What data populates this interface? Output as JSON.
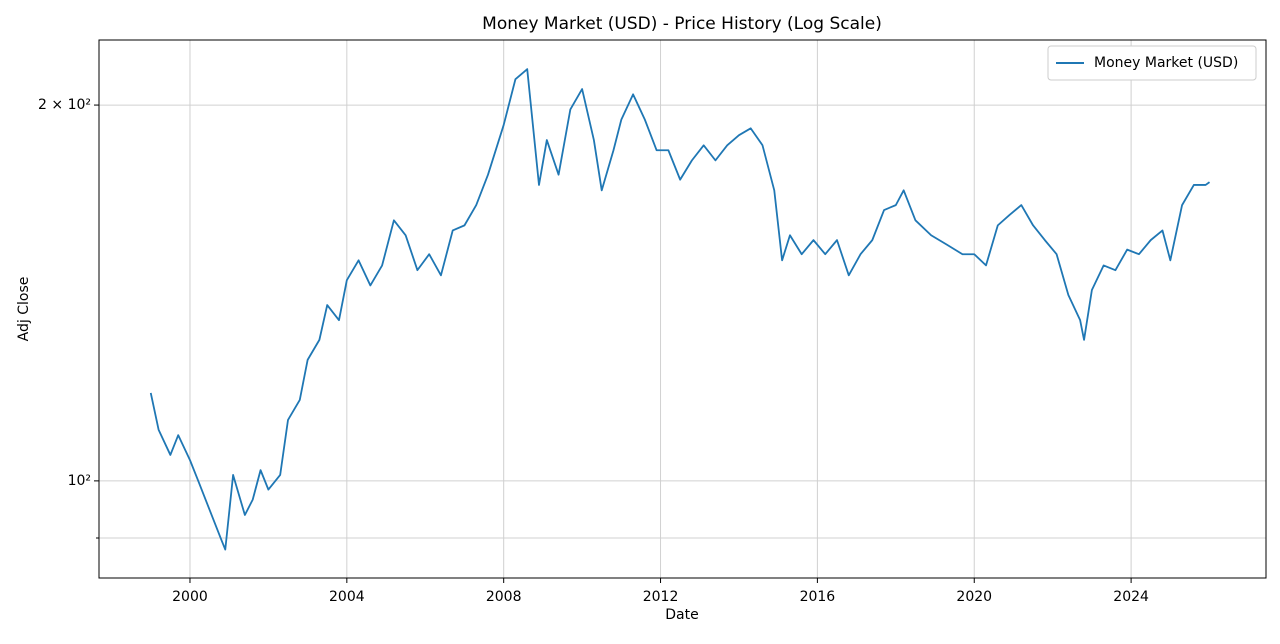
{
  "chart_data": {
    "type": "line",
    "title": "Money Market (USD) - Price History (Log Scale)",
    "xlabel": "Date",
    "ylabel": "Adj Close",
    "log_y": true,
    "grid": true,
    "legend": "upper right",
    "xlim": [
      1997.68,
      2027.44
    ],
    "ylim": [
      83.6,
      225.5
    ],
    "xticks": [
      2000,
      2004,
      2008,
      2012,
      2016,
      2020,
      2024
    ],
    "yticks": [
      {
        "value": 100,
        "label": "10²"
      },
      {
        "value": 200,
        "label": "2 × 10²"
      }
    ],
    "yminor_ticks": [
      90
    ],
    "x": [
      1999.0,
      1999.2,
      1999.5,
      1999.7,
      2000.0,
      2000.2,
      2000.5,
      2000.8,
      2000.9,
      2001.1,
      2001.4,
      2001.6,
      2001.8,
      2002.0,
      2002.3,
      2002.5,
      2002.8,
      2003.0,
      2003.3,
      2003.5,
      2003.8,
      2004.0,
      2004.3,
      2004.6,
      2004.9,
      2005.2,
      2005.5,
      2005.8,
      2006.1,
      2006.4,
      2006.7,
      2007.0,
      2007.3,
      2007.6,
      2008.0,
      2008.3,
      2008.6,
      2008.9,
      2009.1,
      2009.4,
      2009.7,
      2010.0,
      2010.3,
      2010.5,
      2010.8,
      2011.0,
      2011.3,
      2011.6,
      2011.9,
      2012.2,
      2012.5,
      2012.8,
      2013.1,
      2013.4,
      2013.7,
      2014.0,
      2014.3,
      2014.6,
      2014.9,
      2015.1,
      2015.3,
      2015.6,
      2015.9,
      2016.2,
      2016.5,
      2016.8,
      2017.1,
      2017.4,
      2017.7,
      2018.0,
      2018.2,
      2018.5,
      2018.9,
      2019.3,
      2019.7,
      2020.0,
      2020.3,
      2020.6,
      2020.9,
      2021.2,
      2021.5,
      2021.8,
      2022.1,
      2022.4,
      2022.7,
      2022.8,
      2023.0,
      2023.3,
      2023.6,
      2023.9,
      2024.2,
      2024.5,
      2024.8,
      2025.0,
      2025.3,
      2025.6,
      2025.9,
      2026.0
    ],
    "series": [
      {
        "name": "Money Market (USD)",
        "color": "#1f77b4",
        "values": [
          117.6,
          109.9,
          104.9,
          108.8,
          103.9,
          100.2,
          94.8,
          89.7,
          88.1,
          101.1,
          93.9,
          96.6,
          102.0,
          98.4,
          101.1,
          111.9,
          116.1,
          125.0,
          129.7,
          138.3,
          134.5,
          144.8,
          150.2,
          143.4,
          148.8,
          161.7,
          157.3,
          147.5,
          151.9,
          146.1,
          158.7,
          160.2,
          166.3,
          175.9,
          192.8,
          209.8,
          213.7,
          172.6,
          187.5,
          175.9,
          198.4,
          206.0,
          187.5,
          170.9,
          184.0,
          194.7,
          204.0,
          194.7,
          184.0,
          184.0,
          174.3,
          180.6,
          185.7,
          180.6,
          185.7,
          189.2,
          191.6,
          185.7,
          170.9,
          150.2,
          157.3,
          151.9,
          155.9,
          151.9,
          155.9,
          146.1,
          151.9,
          155.9,
          164.8,
          166.3,
          170.9,
          161.7,
          157.3,
          154.6,
          151.9,
          151.9,
          148.8,
          160.2,
          163.3,
          166.3,
          160.2,
          155.9,
          151.9,
          140.9,
          134.5,
          129.7,
          142.2,
          148.8,
          147.5,
          153.2,
          151.9,
          155.9,
          158.7,
          150.2,
          166.3,
          172.6,
          172.6,
          173.5
        ]
      }
    ]
  }
}
